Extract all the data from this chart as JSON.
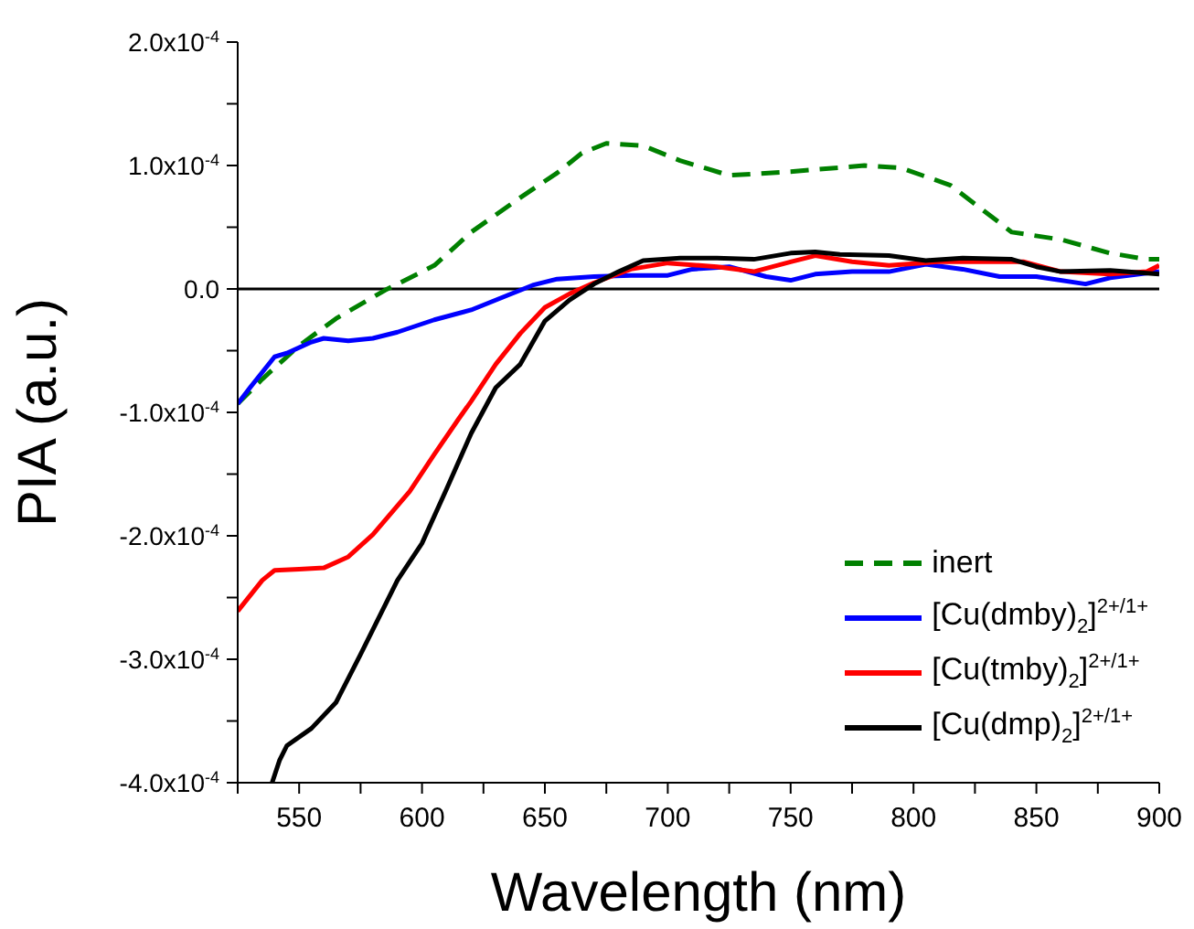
{
  "chart_data": {
    "type": "line",
    "xlabel": "Wavelength (nm)",
    "ylabel": "PIA (a.u.)",
    "xlim": [
      525,
      900
    ],
    "xticks": [
      {
        "value": 525,
        "label": null
      },
      550,
      {
        "value": 575,
        "label": null
      },
      600,
      {
        "value": 625,
        "label": null
      },
      650,
      {
        "value": 675,
        "label": null
      },
      700,
      {
        "value": 725,
        "label": null
      },
      750,
      {
        "value": 775,
        "label": null
      },
      800,
      {
        "value": 825,
        "label": null
      },
      850,
      {
        "value": 875,
        "label": null
      },
      900
    ],
    "ylim": [
      -0.0004,
      0.0002
    ],
    "yticks": [
      {
        "value": -0.0004,
        "label": "-4.0x10$^{-4}$"
      },
      {
        "value": -0.00035,
        "label": null
      },
      {
        "value": -0.0003,
        "label": "-3.0x10$^{-4}$"
      },
      {
        "value": -0.00025,
        "label": null
      },
      {
        "value": -0.0002,
        "label": "-2.0x10$^{-4}$"
      },
      {
        "value": -0.00015,
        "label": null
      },
      {
        "value": -0.0001,
        "label": "-1.0x10$^{-4}$"
      },
      {
        "value": -5e-05,
        "label": null
      },
      {
        "value": 0,
        "label": "0.0"
      },
      {
        "value": 5e-05,
        "label": null
      },
      {
        "value": 0.0001,
        "label": "1.0x10$^{-4}$"
      },
      {
        "value": 0.00015,
        "label": null
      },
      {
        "value": 0.0002,
        "label": "2.0x10$^{-4}$"
      }
    ],
    "grid": false,
    "legend": "bottom right",
    "marker": "none",
    "ref_lines": [
      {
        "axis": "y",
        "value": 0,
        "color": "#000000",
        "line_style": "solid"
      }
    ],
    "series": [
      {
        "name": "inert",
        "color": "#008000",
        "line_style": "dashed",
        "x": [
          525,
          535,
          550,
          565,
          585,
          605,
          620,
          640,
          655,
          665,
          675,
          690,
          705,
          725,
          750,
          780,
          795,
          815,
          840,
          860,
          880,
          895,
          900
        ],
        "values": [
          -9.3e-05,
          -7.3e-05,
          -4.6e-05,
          -2.4e-05,
          -1e-06,
          1.9e-05,
          4.6e-05,
          7.4e-05,
          9.4e-05,
          0.00011,
          0.000118,
          0.000116,
          0.000104,
          9.2e-05,
          9.5e-05,
          0.0001,
          9.8e-05,
          8.4e-05,
          4.6e-05,
          4e-05,
          2.9e-05,
          2.4e-05,
          2.4e-05
        ]
      },
      {
        "name": "[Cu(dmby)$_{2}$]$^{2+/1+}$",
        "color": "#0000ff",
        "line_style": "solid",
        "x": [
          525,
          530,
          540,
          545,
          555,
          560,
          570,
          580,
          590,
          605,
          620,
          635,
          645,
          655,
          670,
          685,
          700,
          710,
          725,
          740,
          750,
          760,
          775,
          790,
          805,
          820,
          835,
          850,
          870,
          880,
          900
        ],
        "values": [
          -9.3e-05,
          -8e-05,
          -5.5e-05,
          -5.2e-05,
          -4.3e-05,
          -4e-05,
          -4.2e-05,
          -4e-05,
          -3.5e-05,
          -2.5e-05,
          -1.7e-05,
          -5e-06,
          3e-06,
          8e-06,
          1e-05,
          1.1e-05,
          1.1e-05,
          1.6e-05,
          1.8e-05,
          1e-05,
          7e-06,
          1.2e-05,
          1.4e-05,
          1.4e-05,
          2e-05,
          1.6e-05,
          1e-05,
          1e-05,
          4e-06,
          9e-06,
          1.4e-05
        ]
      },
      {
        "name": "[Cu(tmby)$_{2}$]$^{2+/1+}$",
        "color": "#ff0000",
        "line_style": "solid",
        "x": [
          525,
          535,
          540,
          550,
          560,
          570,
          580,
          595,
          605,
          615,
          620,
          630,
          640,
          650,
          660,
          670,
          685,
          700,
          720,
          735,
          750,
          760,
          775,
          790,
          810,
          830,
          845,
          860,
          880,
          895,
          900
        ],
        "values": [
          -0.000261,
          -0.000236,
          -0.000228,
          -0.000227,
          -0.000226,
          -0.000217,
          -0.000199,
          -0.000164,
          -0.000134,
          -0.000105,
          -9.1e-05,
          -6.1e-05,
          -3.6e-05,
          -1.5e-05,
          -4e-06,
          5e-06,
          1.6e-05,
          2.1e-05,
          1.8e-05,
          1.4e-05,
          2.2e-05,
          2.7e-05,
          2.2e-05,
          1.9e-05,
          2.2e-05,
          2.2e-05,
          2.2e-05,
          1.4e-05,
          1.2e-05,
          1.4e-05,
          1.9e-05
        ]
      },
      {
        "name": "[Cu(dmp)$_{2}$]$^{2+/1+}$",
        "color": "#000000",
        "line_style": "solid",
        "x": [
          539,
          542,
          545,
          555,
          565,
          575,
          590,
          600,
          610,
          620,
          630,
          640,
          650,
          660,
          670,
          680,
          690,
          705,
          720,
          735,
          750,
          760,
          770,
          790,
          805,
          820,
          840,
          850,
          860,
          880,
          900
        ],
        "values": [
          -0.0004,
          -0.000382,
          -0.00037,
          -0.000356,
          -0.000335,
          -0.000296,
          -0.000236,
          -0.000206,
          -0.000162,
          -0.000117,
          -8e-05,
          -6.1e-05,
          -2.6e-05,
          -9e-06,
          4e-06,
          1.4e-05,
          2.3e-05,
          2.5e-05,
          2.5e-05,
          2.4e-05,
          2.9e-05,
          3e-05,
          2.8e-05,
          2.7e-05,
          2.3e-05,
          2.5e-05,
          2.4e-05,
          1.8e-05,
          1.4e-05,
          1.5e-05,
          1.2e-05
        ]
      }
    ]
  }
}
